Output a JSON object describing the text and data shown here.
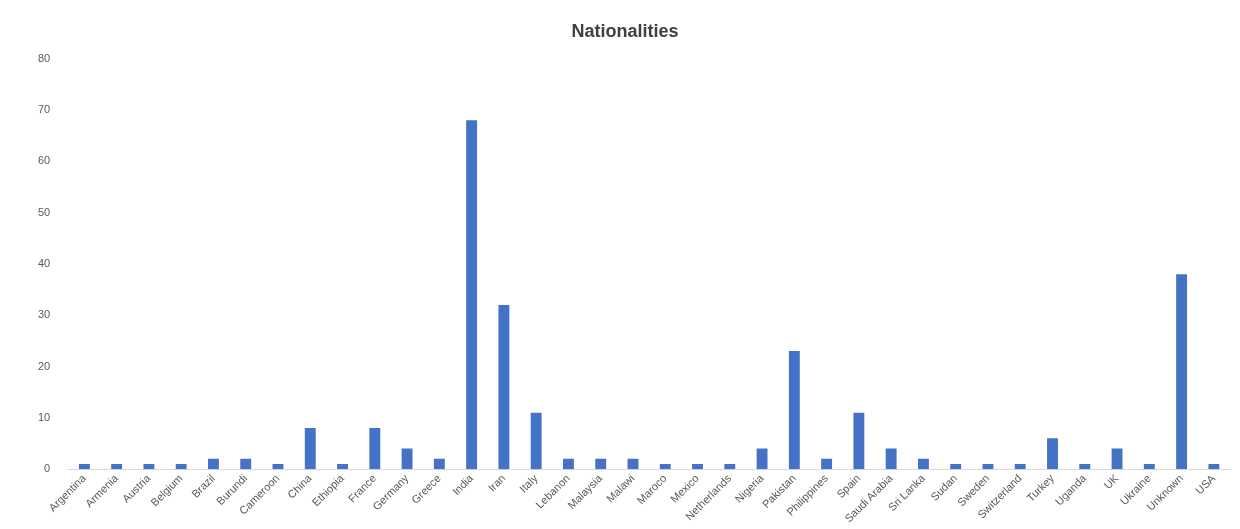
{
  "chart_data": {
    "type": "bar",
    "title": "Nationalities",
    "categories": [
      "Argentina",
      "Armenia",
      "Austria",
      "Belgium",
      "Brazil",
      "Burundi",
      "Cameroon",
      "China",
      "Ethiopia",
      "France",
      "Germany",
      "Greece",
      "India",
      "Iran",
      "Italy",
      "Lebanon",
      "Malaysia",
      "Malawi",
      "Maroco",
      "Mexico",
      "Netherlands",
      "Nigeria",
      "Pakistan",
      "Philippines",
      "Spain",
      "Saudi Arabia",
      "Sri Lanka",
      "Sudan",
      "Sweden",
      "Switzerland",
      "Turkey",
      "Uganda",
      "UK",
      "Ukraine",
      "Unknown",
      "USA"
    ],
    "values": [
      1,
      1,
      1,
      1,
      2,
      2,
      1,
      8,
      1,
      8,
      4,
      2,
      68,
      32,
      11,
      2,
      2,
      2,
      1,
      1,
      1,
      4,
      23,
      2,
      11,
      4,
      2,
      1,
      1,
      1,
      6,
      1,
      4,
      1,
      38,
      1
    ],
    "color": "#4472c4",
    "ylim": [
      0,
      80
    ],
    "yticks": [
      0,
      10,
      20,
      30,
      40,
      50,
      60,
      70,
      80
    ],
    "grid": false
  }
}
